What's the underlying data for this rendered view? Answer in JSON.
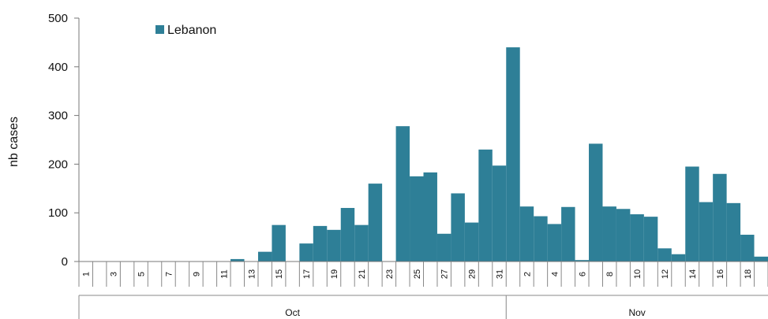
{
  "chart_data": {
    "type": "bar",
    "title": "",
    "xlabel": "",
    "ylabel": "nb cases",
    "ylim": [
      0,
      500
    ],
    "yticks": [
      0,
      100,
      200,
      300,
      400,
      500
    ],
    "grid": false,
    "legend_position": "top-left",
    "color": "#2e7f97",
    "categories": [
      "1",
      "2",
      "3",
      "4",
      "5",
      "6",
      "7",
      "8",
      "9",
      "10",
      "11",
      "12",
      "13",
      "14",
      "15",
      "16",
      "17",
      "18",
      "19",
      "20",
      "21",
      "22",
      "23",
      "24",
      "25",
      "26",
      "27",
      "28",
      "29",
      "30",
      "31",
      "1",
      "2",
      "3",
      "4",
      "5",
      "6",
      "7",
      "8",
      "9",
      "10",
      "11",
      "12",
      "13",
      "14",
      "15",
      "16",
      "17",
      "18",
      "19"
    ],
    "tick_labels": [
      "1",
      "",
      "3",
      "",
      "5",
      "",
      "7",
      "",
      "9",
      "",
      "11",
      "",
      "13",
      "",
      "15",
      "",
      "17",
      "",
      "19",
      "",
      "21",
      "",
      "23",
      "",
      "25",
      "",
      "27",
      "",
      "29",
      "",
      "31",
      "",
      "2",
      "",
      "4",
      "",
      "6",
      "",
      "8",
      "",
      "10",
      "",
      "12",
      "",
      "14",
      "",
      "16",
      "",
      "18",
      ""
    ],
    "month_groups": [
      {
        "label": "Oct",
        "start": 0,
        "count": 31
      },
      {
        "label": "Nov",
        "start": 31,
        "count": 19
      }
    ],
    "series": [
      {
        "name": "Lebanon",
        "values": [
          0,
          0,
          0,
          0,
          0,
          0,
          0,
          0,
          0,
          0,
          0,
          5,
          0,
          20,
          75,
          0,
          37,
          73,
          65,
          110,
          75,
          160,
          0,
          278,
          175,
          183,
          57,
          140,
          80,
          230,
          197,
          440,
          113,
          93,
          77,
          112,
          3,
          242,
          113,
          108,
          97,
          92,
          27,
          15,
          195,
          122,
          180,
          120,
          55,
          10
        ]
      }
    ]
  }
}
